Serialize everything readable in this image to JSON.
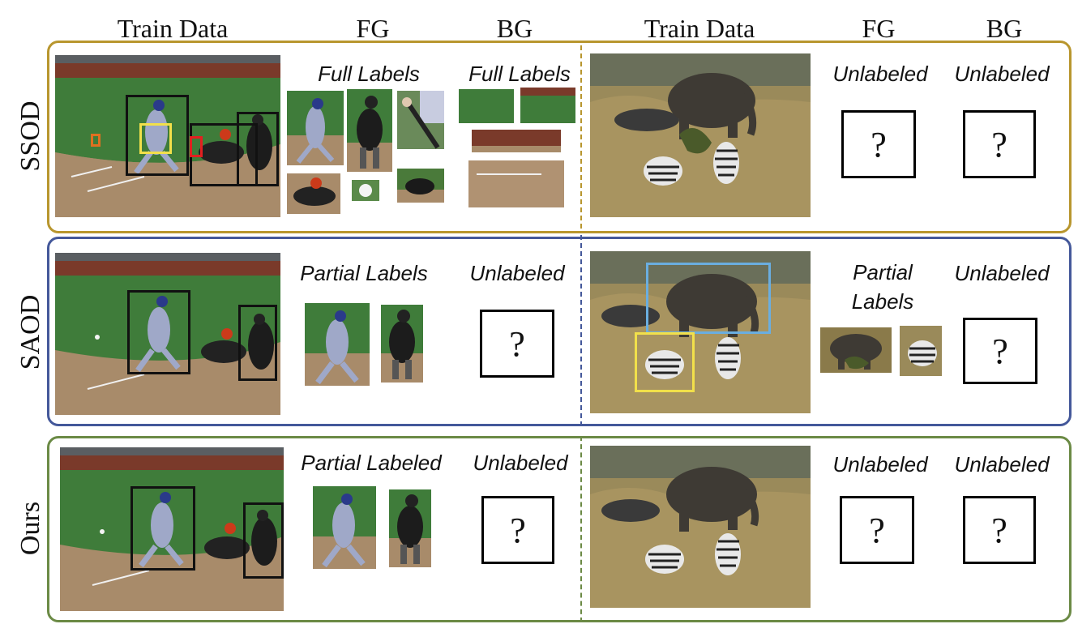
{
  "headers": {
    "train_data_left": "Train Data",
    "fg_left": "FG",
    "bg_left": "BG",
    "train_data_right": "Train Data",
    "fg_right": "FG",
    "bg_right": "BG"
  },
  "rows": [
    {
      "name": "SSOD",
      "color": "#b8962e",
      "fg_left_label": "Full Labels",
      "bg_left_label": "Full Labels",
      "fg_right_label": "Unlabeled",
      "bg_right_label": "Unlabeled",
      "question": "?"
    },
    {
      "name": "SAOD",
      "color": "#44589a",
      "fg_left_label": "Partial Labels",
      "bg_left_label": "Unlabeled",
      "fg_right_label": "Partial\nLabels",
      "bg_right_label": "Unlabeled",
      "question": "?"
    },
    {
      "name": "Ours",
      "color": "#6b8a45",
      "fg_left_label": "Partial Labeled",
      "bg_left_label": "Unlabeled",
      "fg_right_label": "Unlabeled",
      "bg_right_label": "Unlabeled",
      "question": "?"
    }
  ],
  "colors": {
    "box_black": "#111111",
    "box_yellow": "#f2e04a",
    "box_red": "#e22020",
    "box_orange": "#e07020",
    "box_blue": "#6aaee0",
    "field_grass": "#3f7c3a",
    "field_dirt": "#a88b6a",
    "savanna": "#8a7a4a"
  }
}
